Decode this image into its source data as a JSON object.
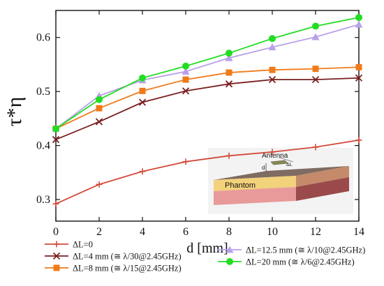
{
  "chart_data": {
    "type": "line",
    "xlabel": "d [mm]",
    "ylabel": "τ*η",
    "xlim": [
      0,
      14
    ],
    "ylim": [
      0.26,
      0.65
    ],
    "x_ticks": [
      "0",
      "2",
      "4",
      "6",
      "8",
      "10",
      "12",
      "14"
    ],
    "y_ticks": [
      "0.3",
      "0.4",
      "0.5",
      "0.6"
    ],
    "x": [
      0,
      2,
      4,
      6,
      8,
      10,
      12,
      14
    ],
    "grid": false,
    "legend_position": "bottom",
    "series": [
      {
        "name": "ΔL=0",
        "color": "#d24a3a",
        "marker": "plus",
        "values": [
          0.292,
          0.328,
          0.352,
          0.37,
          0.381,
          0.388,
          0.397,
          0.41
        ]
      },
      {
        "name": "ΔL=4 mm (≅ λ/30@2.45GHz)",
        "color": "#7a1f1f",
        "marker": "x",
        "values": [
          0.411,
          0.444,
          0.48,
          0.501,
          0.514,
          0.522,
          0.522,
          0.525
        ]
      },
      {
        "name": "ΔL=8 mm (≅ λ/15@2.45GHz)",
        "color": "#f07a1a",
        "marker": "square",
        "values": [
          0.431,
          0.469,
          0.501,
          0.522,
          0.535,
          0.54,
          0.542,
          0.545
        ]
      },
      {
        "name": "ΔL=12.5 mm (≅ λ/10@2.45GHz)",
        "color": "#b9a0e8",
        "marker": "triangle",
        "values": [
          0.431,
          0.492,
          0.521,
          0.537,
          0.562,
          0.582,
          0.601,
          0.624
        ]
      },
      {
        "name": "ΔL=20 mm (≅ λ/6@2.45GHz)",
        "color": "#22dd22",
        "marker": "circle",
        "values": [
          0.431,
          0.485,
          0.525,
          0.547,
          0.571,
          0.598,
          0.621,
          0.637
        ]
      }
    ]
  },
  "inset": {
    "antenna_label": "Antenna",
    "phantom_label": "Phantom",
    "d_label": "d",
    "delta_label": "ΔL"
  }
}
